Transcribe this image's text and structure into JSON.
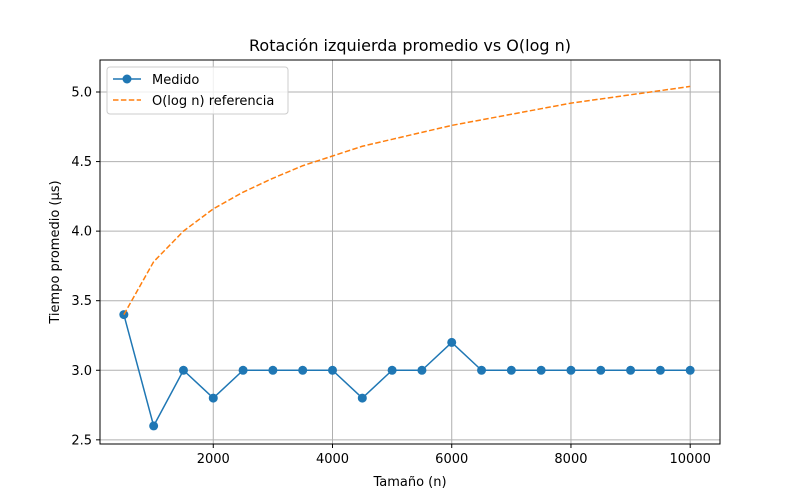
{
  "chart_data": {
    "type": "line",
    "title": "Rotación izquierda promedio vs O(log n)",
    "xlabel": "Tamaño (n)",
    "ylabel": "Tiempo promedio (µs)",
    "xlim": [
      100,
      10500
    ],
    "ylim": [
      2.47,
      5.23
    ],
    "xticks": [
      2000,
      4000,
      6000,
      8000,
      10000
    ],
    "xtick_labels": [
      "2000",
      "4000",
      "6000",
      "8000",
      "10000"
    ],
    "yticks": [
      2.5,
      3.0,
      3.5,
      4.0,
      4.5,
      5.0
    ],
    "ytick_labels": [
      "2.5",
      "3.0",
      "3.5",
      "4.0",
      "4.5",
      "5.0"
    ],
    "grid": true,
    "legend_position": "upper-left",
    "x": [
      500,
      1000,
      1500,
      2000,
      2500,
      3000,
      3500,
      4000,
      4500,
      5000,
      5500,
      6000,
      6500,
      7000,
      7500,
      8000,
      8500,
      9000,
      9500,
      10000
    ],
    "series": [
      {
        "name": "Medido",
        "style": "solid-markers",
        "color": "#1f77b4",
        "values": [
          3.4,
          2.6,
          3.0,
          2.8,
          3.0,
          3.0,
          3.0,
          3.0,
          2.8,
          3.0,
          3.0,
          3.2,
          3.0,
          3.0,
          3.0,
          3.0,
          3.0,
          3.0,
          3.0,
          3.0
        ]
      },
      {
        "name": "O(log n) referencia",
        "style": "dashed",
        "color": "#ff7f0e",
        "values": [
          3.4,
          3.78,
          4.0,
          4.16,
          4.28,
          4.38,
          4.47,
          4.54,
          4.61,
          4.66,
          4.71,
          4.76,
          4.8,
          4.84,
          4.88,
          4.92,
          4.95,
          4.98,
          5.01,
          5.04
        ]
      }
    ]
  }
}
